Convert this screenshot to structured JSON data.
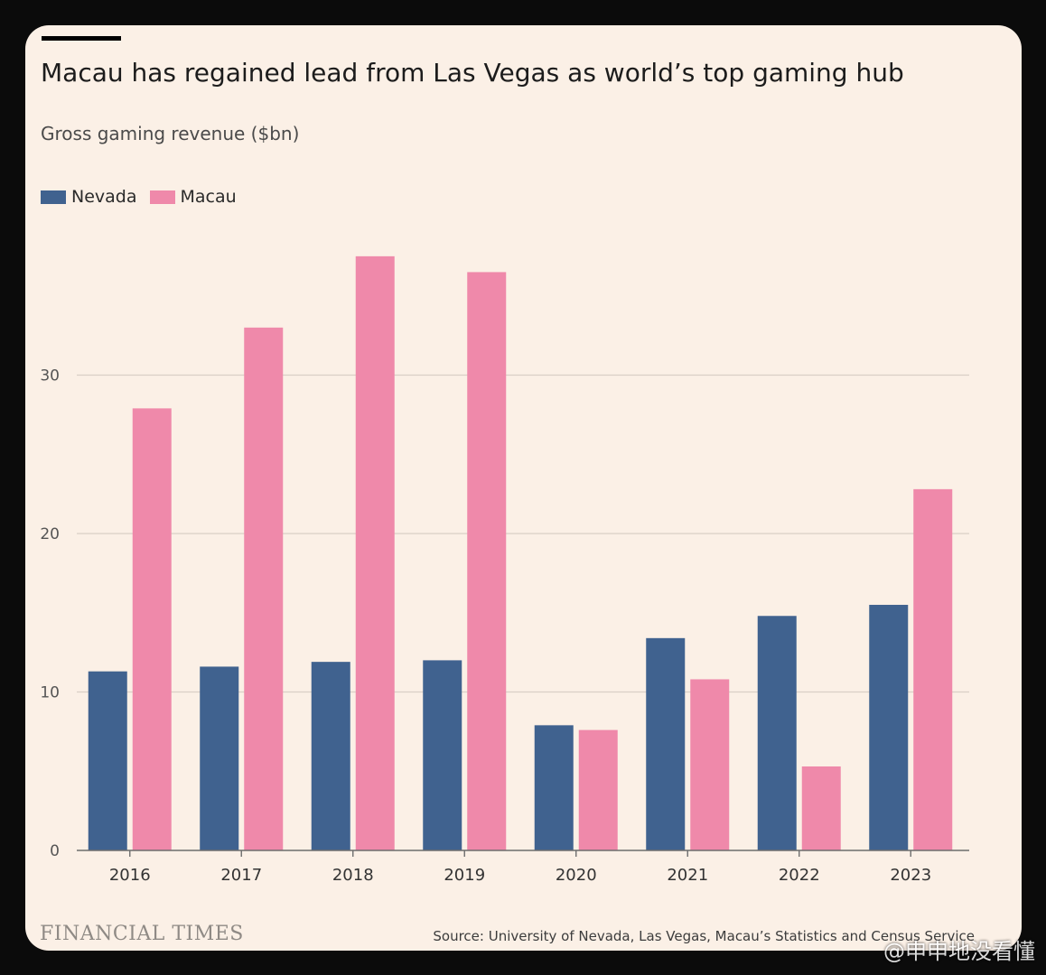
{
  "header": {
    "title": "Macau has regained lead from Las Vegas as world’s top gaming hub",
    "subtitle": "Gross gaming revenue ($bn)"
  },
  "legend": {
    "items": [
      {
        "label": "Nevada",
        "color": "#40628f"
      },
      {
        "label": "Macau",
        "color": "#ef89aa"
      }
    ]
  },
  "footer": {
    "brand": "FINANCIAL TIMES",
    "source": "Source: University of Nevada, Las Vegas, Macau’s Statistics and Census Service",
    "watermark": "@申申地没看懂"
  },
  "chart_data": {
    "type": "bar",
    "title": "Macau has regained lead from Las Vegas as world’s top gaming hub",
    "ylabel": "Gross gaming revenue ($bn)",
    "xlabel": "",
    "categories": [
      "2016",
      "2017",
      "2018",
      "2019",
      "2020",
      "2021",
      "2022",
      "2023"
    ],
    "series": [
      {
        "name": "Nevada",
        "color": "#40628f",
        "values": [
          11.3,
          11.6,
          11.9,
          12.0,
          7.9,
          13.4,
          14.8,
          15.5
        ]
      },
      {
        "name": "Macau",
        "color": "#ef89aa",
        "values": [
          27.9,
          33.0,
          37.5,
          36.5,
          7.6,
          10.8,
          5.3,
          22.8
        ]
      }
    ],
    "yticks": [
      0,
      10,
      20,
      30
    ],
    "ylim": [
      0,
      40
    ],
    "grid": true,
    "legend": "top-left"
  }
}
